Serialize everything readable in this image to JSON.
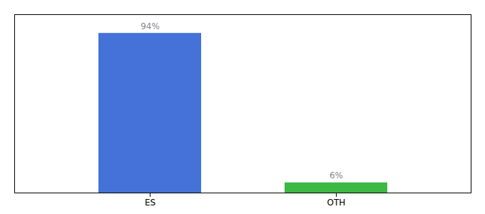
{
  "chart_data": {
    "type": "bar",
    "categories": [
      "ES",
      "OTH"
    ],
    "values": [
      94,
      6
    ],
    "value_labels": [
      "94%",
      "6%"
    ],
    "colors": [
      "#4472d9",
      "#3cb843"
    ],
    "ylim": [
      0,
      105
    ],
    "data_labels": true,
    "tick_labels": "x",
    "grid": false
  }
}
